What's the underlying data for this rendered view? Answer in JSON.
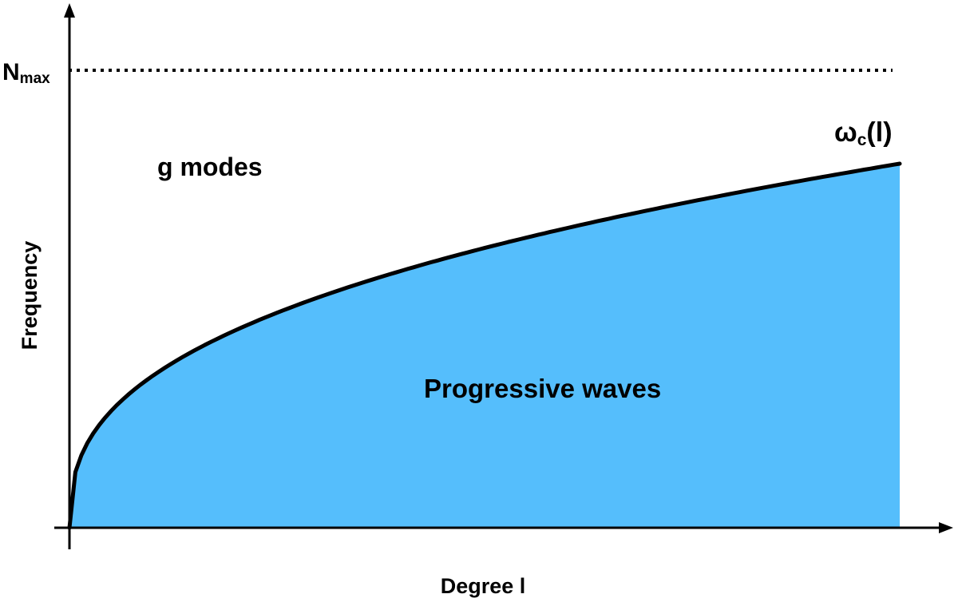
{
  "diagram": {
    "y_axis_label": "Frequency",
    "x_axis_label": "Degree l",
    "nmax_label": {
      "main": "N",
      "subscript": "max"
    },
    "curve_label": {
      "main": "ω",
      "subscript": "c",
      "suffix": "(l)"
    },
    "region_above_label": "g modes",
    "region_below_label": "Progressive waves",
    "colors": {
      "fill": "#55BEFC",
      "curve": "#000000",
      "axes": "#000000",
      "nmax_line": "#000000"
    }
  }
}
